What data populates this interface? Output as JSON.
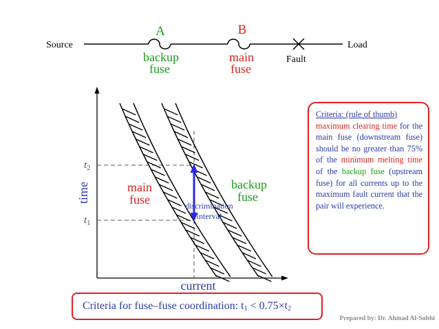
{
  "circuit": {
    "source_label": "Source",
    "load_label": "Load",
    "fault_label": "Fault",
    "fuse_a": {
      "letter": "A",
      "name_line1": "backup",
      "name_line2": "fuse"
    },
    "fuse_b": {
      "letter": "B",
      "name_line1": "main",
      "name_line2": "fuse"
    }
  },
  "plot": {
    "ylabel": "time",
    "xlabel": "current",
    "t2_label": "t",
    "t2_sub": "2",
    "t1_label": "t",
    "t1_sub": "1",
    "main_curve_line1": "main",
    "main_curve_line2": "fuse",
    "backup_curve_line1": "backup",
    "backup_curve_line2": "fuse",
    "interval_line1": "discrimination",
    "interval_line2": "interval"
  },
  "criteria": {
    "heading": "Criteria: (rule of thumb)",
    "parts": [
      {
        "text": "maximum ",
        "color": "red"
      },
      {
        "text": "clearing time ",
        "color": "red"
      },
      {
        "text": "for the main fuse (downstream fuse) should be no greater than 75% of the ",
        "color": "blue"
      },
      {
        "text": "minimum melting time ",
        "color": "red"
      },
      {
        "text": "of the ",
        "color": "blue"
      },
      {
        "text": "backup fuse ",
        "color": "green"
      },
      {
        "text": "(upstream fuse) for all currents up to the maximum fault current that the pair will experience.",
        "color": "blue"
      }
    ]
  },
  "bottom": {
    "text": "Criteria for fuse–fuse coordination: t",
    "sub1": "1",
    "mid": " < 0.75×t",
    "sub2": "2"
  },
  "credit": "Prepared by: Dr. Ahmad Al-Subhi",
  "colors": {
    "red": "#d8221e",
    "blue": "#2a3aa8",
    "green": "#1a9a1a",
    "arrow": "#2a2ae8"
  }
}
